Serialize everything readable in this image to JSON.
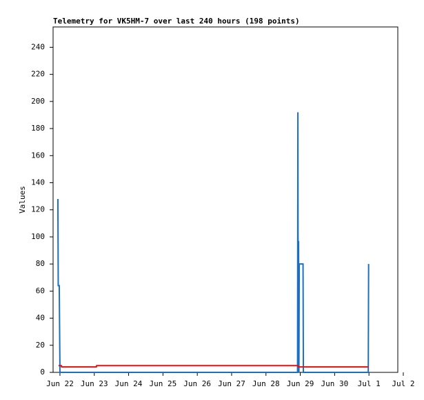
{
  "chart_data": {
    "type": "line",
    "title": "Telemetry for VK5HM-7 over last 240 hours (198 points)",
    "y_label": "Values",
    "xlim": [
      -0.2,
      9.84
    ],
    "xticks": [
      {
        "value": 0,
        "label": "Jun 22"
      },
      {
        "value": 1,
        "label": "Jun 23"
      },
      {
        "value": 2,
        "label": "Jun 24"
      },
      {
        "value": 3,
        "label": "Jun 25"
      },
      {
        "value": 4,
        "label": "Jun 26"
      },
      {
        "value": 5,
        "label": "Jun 27"
      },
      {
        "value": 6,
        "label": "Jun 28"
      },
      {
        "value": 7,
        "label": "Jun 29"
      },
      {
        "value": 8,
        "label": "Jun 30"
      },
      {
        "value": 9,
        "label": "Jul 1"
      },
      {
        "value": 10,
        "label": "Jul 2"
      }
    ],
    "ylim": [
      0,
      255
    ],
    "yticks": [
      0,
      20,
      40,
      60,
      80,
      100,
      120,
      140,
      160,
      180,
      200,
      220,
      240
    ],
    "series": [
      {
        "color": "#1a6fc4",
        "x": [
          -0.06,
          -0.05,
          -0.02,
          0.0,
          6.92,
          6.93,
          6.94,
          6.95,
          6.96,
          6.97,
          7.08,
          7.09,
          8.98,
          8.99
        ],
        "values": [
          128,
          64,
          64,
          0,
          0,
          192,
          0,
          97,
          0,
          80,
          80,
          0,
          0,
          80
        ]
      },
      {
        "color": "#e01010",
        "x": [
          -0.04,
          0.04,
          0.05,
          1.06,
          1.07,
          6.93,
          6.94,
          8.99
        ],
        "values": [
          5,
          5,
          4,
          4,
          5,
          5,
          4,
          4
        ]
      }
    ]
  }
}
